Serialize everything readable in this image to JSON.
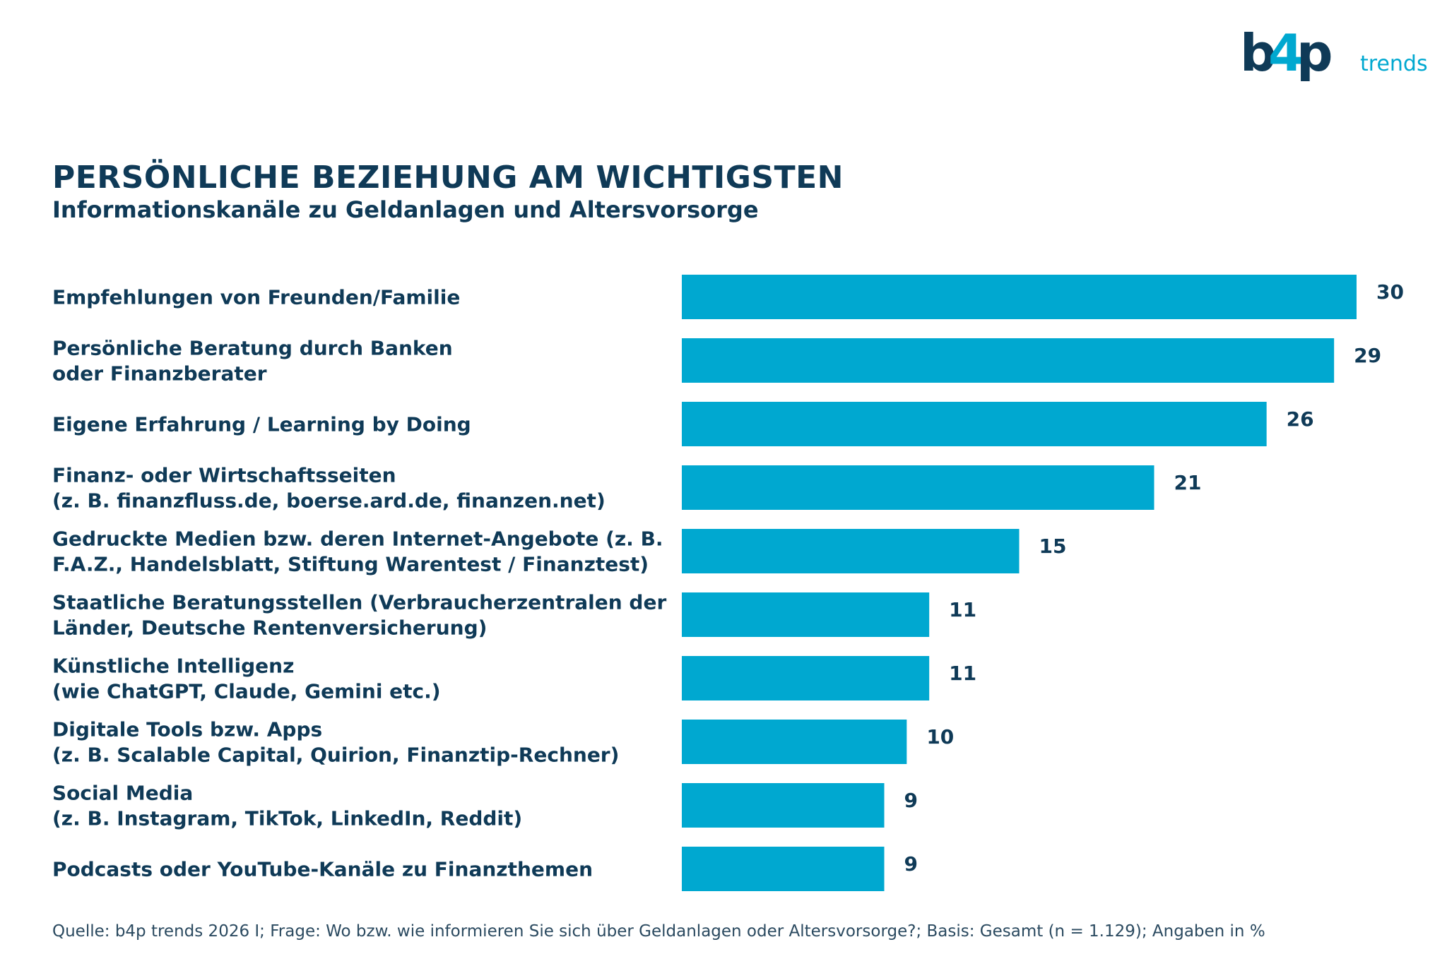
{
  "logo": {
    "text": "b4p",
    "suffix": "trends",
    "dark": "#0f3a57",
    "accent": "#00a8d0"
  },
  "chart_data": {
    "type": "bar",
    "orientation": "horizontal",
    "title": "PERSÖNLICHE BEZIEHUNG AM WICHTIGSTEN",
    "subtitle": "Informationskanäle zu Geldanlagen und Altersvorsorge",
    "categories": [
      [
        "Empfehlungen von Freunden/Familie"
      ],
      [
        "Persönliche Beratung durch Banken",
        "oder Finanzberater"
      ],
      [
        "Eigene Erfahrung / Learning by Doing"
      ],
      [
        "Finanz- oder Wirtschaftsseiten",
        "(z. B. finanzfluss.de, boerse.ard.de, finanzen.net)"
      ],
      [
        "Gedruckte Medien bzw. deren Internet-Angebote (z. B.",
        "F.A.Z., Handelsblatt, Stiftung Warentest / Finanztest)"
      ],
      [
        "Staatliche Beratungsstellen (Verbraucherzentralen der",
        "Länder, Deutsche Rentenversicherung)"
      ],
      [
        "Künstliche Intelligenz",
        "(wie ChatGPT, Claude, Gemini etc.)"
      ],
      [
        "Digitale Tools bzw. Apps",
        "(z. B. Scalable Capital, Quirion, Finanztip-Rechner)"
      ],
      [
        "Social Media",
        "(z. B. Instagram, TikTok, LinkedIn, Reddit)"
      ],
      [
        "Podcasts oder YouTube-Kanäle zu Finanzthemen"
      ]
    ],
    "values": [
      30,
      29,
      26,
      21,
      15,
      11,
      11,
      10,
      9,
      9
    ],
    "unit": "%",
    "xlim": [
      0,
      30
    ],
    "grid": false,
    "bar_color": "#00a8d0"
  },
  "footer": "Quelle: b4p trends 2026 I; Frage: Wo bzw. wie informieren Sie sich über Geldanlagen oder Altersvorsorge?; Basis: Gesamt (n = 1.129); Angaben in %"
}
